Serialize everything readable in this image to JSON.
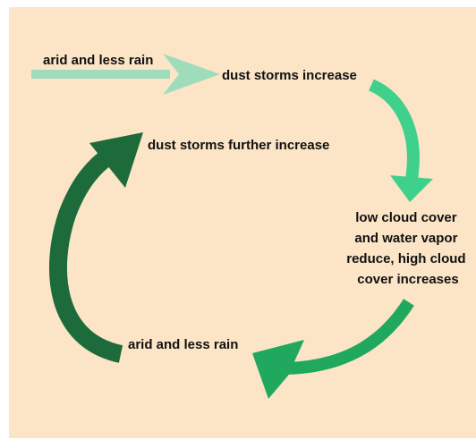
{
  "nodes": [
    {
      "label": "arid and less rain"
    },
    {
      "label": "dust storms increase"
    },
    {
      "lines": [
        "low cloud cover",
        "and water vapor",
        "reduce, high cloud",
        "cover increases"
      ]
    },
    {
      "label": "arid and less rain"
    },
    {
      "label": "dust storms further increase"
    }
  ]
}
